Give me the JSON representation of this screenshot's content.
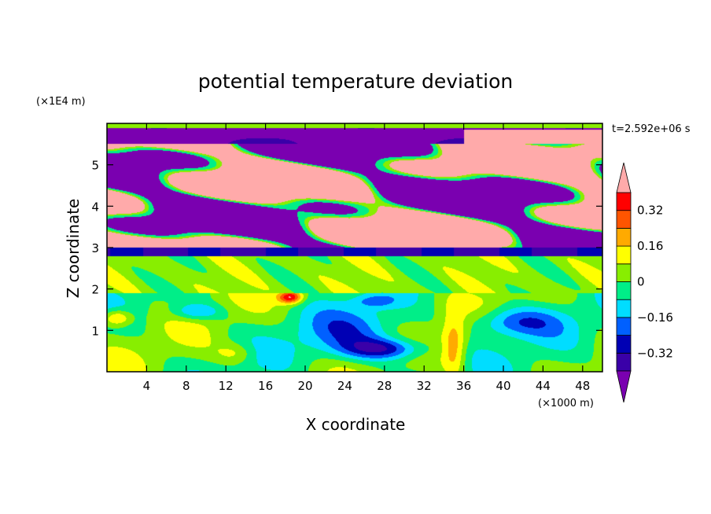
{
  "chart_data": {
    "type": "heatmap",
    "title": "potential temperature deviation",
    "xlabel": "X coordinate",
    "ylabel": "Z coordinate",
    "x_unit": "(×1000 m)",
    "y_unit": "(×1E4 m)",
    "time_label": "t=2.592e+06 s",
    "x_ticks": [
      "4",
      "8",
      "12",
      "16",
      "20",
      "24",
      "28",
      "32",
      "36",
      "40",
      "44",
      "48"
    ],
    "y_ticks": [
      "1",
      "2",
      "3",
      "4",
      "5"
    ],
    "xlim": [
      0,
      50
    ],
    "ylim": [
      0,
      6
    ],
    "colorbar": {
      "levels": [
        -0.4,
        -0.32,
        -0.24,
        -0.16,
        -0.08,
        0,
        0.08,
        0.16,
        0.24,
        0.32,
        0.4
      ],
      "tick_labels": [
        "0.32",
        "0.16",
        "0",
        "−0.16",
        "−0.32"
      ],
      "tick_values": [
        0.32,
        0.16,
        0,
        -0.16,
        -0.32
      ],
      "colors": [
        "#7a00b0",
        "#3a00a8",
        "#0000b4",
        "#0060ff",
        "#00ddff",
        "#00ee88",
        "#88ee00",
        "#ffff00",
        "#ffaa00",
        "#ff5500",
        "#ff0000",
        "#ffaaaa"
      ],
      "extend": "both"
    },
    "bands": [
      {
        "z_range": [
          5.5,
          6.0
        ],
        "description_value": -0.4
      },
      {
        "z_range": [
          3.0,
          5.5
        ],
        "description_value": 0.4
      },
      {
        "z_range": [
          2.8,
          3.0
        ],
        "description_value": -0.32
      },
      {
        "z_range": [
          1.9,
          2.8
        ],
        "description_value": 0.05
      },
      {
        "z_range": [
          0.0,
          1.9
        ],
        "description_value": 0.0
      }
    ]
  }
}
